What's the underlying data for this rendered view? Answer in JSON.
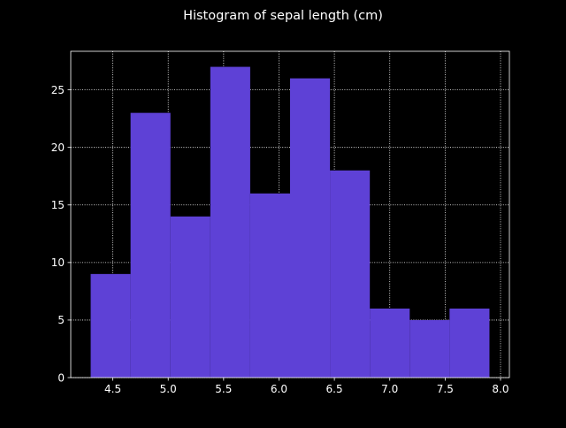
{
  "chart_data": {
    "type": "bar",
    "title": "Histogram of sepal length (cm)",
    "xlabel": "",
    "ylabel": "",
    "bin_edges": [
      4.3,
      4.66,
      5.02,
      5.38,
      5.74,
      6.1,
      6.46,
      6.82,
      7.18,
      7.54,
      7.9
    ],
    "values": [
      9,
      23,
      14,
      27,
      16,
      26,
      18,
      6,
      5,
      6
    ],
    "xlim": [
      4.12,
      8.08
    ],
    "ylim": [
      0,
      28.35
    ],
    "xticks": [
      4.5,
      5.0,
      5.5,
      6.0,
      6.5,
      7.0,
      7.5,
      8.0
    ],
    "xtick_labels": [
      "4.5",
      "5.0",
      "5.5",
      "6.0",
      "6.5",
      "7.0",
      "7.5",
      "8.0"
    ],
    "yticks": [
      0,
      5,
      10,
      15,
      20,
      25
    ],
    "ytick_labels": [
      "0",
      "5",
      "10",
      "15",
      "20",
      "25"
    ],
    "grid": true,
    "colors": {
      "background": "#000000",
      "bar": "#5e41d6",
      "axes": "#ffffff",
      "text": "#ffffff",
      "grid": "#ffffff"
    }
  }
}
